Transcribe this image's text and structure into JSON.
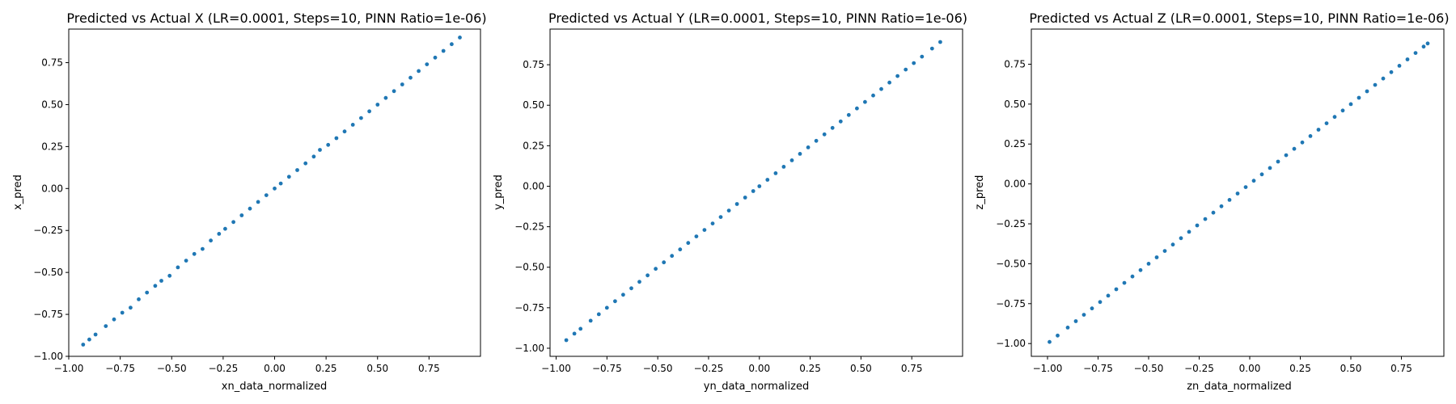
{
  "figure": {
    "point_color": "#1f77b4"
  },
  "chart_data": [
    {
      "type": "scatter",
      "title": "Predicted vs Actual X (LR=0.0001, Steps=10, PINN Ratio=1e-06)",
      "xlabel": "xn_data_normalized",
      "ylabel": "x_pred",
      "xlim": [
        -1.0,
        1.0
      ],
      "ylim": [
        -1.0,
        0.95
      ],
      "xticks": [
        -1.0,
        -0.75,
        -0.5,
        -0.25,
        0.0,
        0.25,
        0.5,
        0.75
      ],
      "xtick_labels": [
        "−1.00",
        "−0.75",
        "−0.50",
        "−0.25",
        "0.00",
        "0.25",
        "0.50",
        "0.75"
      ],
      "yticks": [
        -1.0,
        -0.75,
        -0.5,
        -0.25,
        0.0,
        0.25,
        0.5,
        0.75
      ],
      "ytick_labels": [
        "−1.00",
        "−0.75",
        "−0.50",
        "−0.25",
        "0.00",
        "0.25",
        "0.50",
        "0.75"
      ],
      "grid": false,
      "legend": "none",
      "points": [
        [
          -0.93,
          -0.93
        ],
        [
          -0.9,
          -0.9
        ],
        [
          -0.87,
          -0.87
        ],
        [
          -0.82,
          -0.82
        ],
        [
          -0.78,
          -0.78
        ],
        [
          -0.74,
          -0.74
        ],
        [
          -0.7,
          -0.71
        ],
        [
          -0.66,
          -0.66
        ],
        [
          -0.62,
          -0.62
        ],
        [
          -0.58,
          -0.58
        ],
        [
          -0.55,
          -0.55
        ],
        [
          -0.51,
          -0.52
        ],
        [
          -0.47,
          -0.47
        ],
        [
          -0.43,
          -0.43
        ],
        [
          -0.39,
          -0.39
        ],
        [
          -0.35,
          -0.36
        ],
        [
          -0.31,
          -0.31
        ],
        [
          -0.27,
          -0.27
        ],
        [
          -0.24,
          -0.24
        ],
        [
          -0.2,
          -0.2
        ],
        [
          -0.16,
          -0.16
        ],
        [
          -0.12,
          -0.12
        ],
        [
          -0.08,
          -0.08
        ],
        [
          -0.04,
          -0.04
        ],
        [
          0.0,
          0.0
        ],
        [
          0.03,
          0.03
        ],
        [
          0.07,
          0.07
        ],
        [
          0.11,
          0.11
        ],
        [
          0.15,
          0.15
        ],
        [
          0.19,
          0.19
        ],
        [
          0.22,
          0.23
        ],
        [
          0.26,
          0.26
        ],
        [
          0.3,
          0.3
        ],
        [
          0.34,
          0.34
        ],
        [
          0.38,
          0.38
        ],
        [
          0.42,
          0.42
        ],
        [
          0.46,
          0.46
        ],
        [
          0.5,
          0.5
        ],
        [
          0.54,
          0.54
        ],
        [
          0.58,
          0.58
        ],
        [
          0.62,
          0.62
        ],
        [
          0.66,
          0.66
        ],
        [
          0.7,
          0.7
        ],
        [
          0.74,
          0.74
        ],
        [
          0.78,
          0.78
        ],
        [
          0.82,
          0.82
        ],
        [
          0.86,
          0.86
        ],
        [
          0.9,
          0.9
        ]
      ]
    },
    {
      "type": "scatter",
      "title": "Predicted vs Actual Y (LR=0.0001, Steps=10, PINN Ratio=1e-06)",
      "xlabel": "yn_data_normalized",
      "ylabel": "y_pred",
      "xlim": [
        -1.03,
        1.0
      ],
      "ylim": [
        -1.05,
        0.97
      ],
      "xticks": [
        -1.0,
        -0.75,
        -0.5,
        -0.25,
        0.0,
        0.25,
        0.5,
        0.75
      ],
      "xtick_labels": [
        "−1.00",
        "−0.75",
        "−0.50",
        "−0.25",
        "0.00",
        "0.25",
        "0.50",
        "0.75"
      ],
      "yticks": [
        -1.0,
        -0.75,
        -0.5,
        -0.25,
        0.0,
        0.25,
        0.5,
        0.75
      ],
      "ytick_labels": [
        "−1.00",
        "−0.75",
        "−0.50",
        "−0.25",
        "0.00",
        "0.25",
        "0.50",
        "0.75"
      ],
      "grid": false,
      "legend": "none",
      "points": [
        [
          -0.95,
          -0.95
        ],
        [
          -0.91,
          -0.91
        ],
        [
          -0.88,
          -0.88
        ],
        [
          -0.83,
          -0.83
        ],
        [
          -0.79,
          -0.79
        ],
        [
          -0.75,
          -0.75
        ],
        [
          -0.71,
          -0.71
        ],
        [
          -0.67,
          -0.67
        ],
        [
          -0.63,
          -0.63
        ],
        [
          -0.59,
          -0.59
        ],
        [
          -0.55,
          -0.55
        ],
        [
          -0.51,
          -0.51
        ],
        [
          -0.47,
          -0.47
        ],
        [
          -0.43,
          -0.43
        ],
        [
          -0.39,
          -0.39
        ],
        [
          -0.35,
          -0.35
        ],
        [
          -0.31,
          -0.31
        ],
        [
          -0.27,
          -0.27
        ],
        [
          -0.23,
          -0.23
        ],
        [
          -0.19,
          -0.19
        ],
        [
          -0.15,
          -0.15
        ],
        [
          -0.11,
          -0.11
        ],
        [
          -0.07,
          -0.07
        ],
        [
          -0.03,
          -0.03
        ],
        [
          0.0,
          0.0
        ],
        [
          0.04,
          0.04
        ],
        [
          0.08,
          0.08
        ],
        [
          0.12,
          0.12
        ],
        [
          0.16,
          0.16
        ],
        [
          0.2,
          0.2
        ],
        [
          0.24,
          0.24
        ],
        [
          0.28,
          0.28
        ],
        [
          0.32,
          0.32
        ],
        [
          0.36,
          0.36
        ],
        [
          0.4,
          0.4
        ],
        [
          0.44,
          0.44
        ],
        [
          0.48,
          0.48
        ],
        [
          0.52,
          0.52
        ],
        [
          0.56,
          0.56
        ],
        [
          0.6,
          0.6
        ],
        [
          0.64,
          0.64
        ],
        [
          0.68,
          0.68
        ],
        [
          0.72,
          0.72
        ],
        [
          0.76,
          0.76
        ],
        [
          0.8,
          0.8
        ],
        [
          0.85,
          0.85
        ],
        [
          0.89,
          0.89
        ]
      ]
    },
    {
      "type": "scatter",
      "title": "Predicted vs Actual Z (LR=0.0001, Steps=10, PINN Ratio=1e-06)",
      "xlabel": "zn_data_normalized",
      "ylabel": "z_pred",
      "xlim": [
        -1.08,
        0.96
      ],
      "ylim": [
        -1.08,
        0.97
      ],
      "xticks": [
        -1.0,
        -0.75,
        -0.5,
        -0.25,
        0.0,
        0.25,
        0.5,
        0.75
      ],
      "xtick_labels": [
        "−1.00",
        "−0.75",
        "−0.50",
        "−0.25",
        "0.00",
        "0.25",
        "0.50",
        "0.75"
      ],
      "yticks": [
        -1.0,
        -0.75,
        -0.5,
        -0.25,
        0.0,
        0.25,
        0.5,
        0.75
      ],
      "ytick_labels": [
        "−1.00",
        "−0.75",
        "−0.50",
        "−0.25",
        "0.00",
        "0.25",
        "0.50",
        "0.75"
      ],
      "grid": false,
      "legend": "none",
      "points": [
        [
          -0.99,
          -0.99
        ],
        [
          -0.95,
          -0.95
        ],
        [
          -0.9,
          -0.9
        ],
        [
          -0.86,
          -0.86
        ],
        [
          -0.82,
          -0.82
        ],
        [
          -0.78,
          -0.78
        ],
        [
          -0.74,
          -0.74
        ],
        [
          -0.7,
          -0.7
        ],
        [
          -0.66,
          -0.66
        ],
        [
          -0.62,
          -0.62
        ],
        [
          -0.58,
          -0.58
        ],
        [
          -0.54,
          -0.54
        ],
        [
          -0.5,
          -0.5
        ],
        [
          -0.46,
          -0.46
        ],
        [
          -0.42,
          -0.42
        ],
        [
          -0.38,
          -0.38
        ],
        [
          -0.34,
          -0.34
        ],
        [
          -0.3,
          -0.3
        ],
        [
          -0.26,
          -0.26
        ],
        [
          -0.22,
          -0.22
        ],
        [
          -0.18,
          -0.18
        ],
        [
          -0.14,
          -0.14
        ],
        [
          -0.1,
          -0.1
        ],
        [
          -0.06,
          -0.06
        ],
        [
          -0.02,
          -0.02
        ],
        [
          0.02,
          0.02
        ],
        [
          0.06,
          0.06
        ],
        [
          0.1,
          0.1
        ],
        [
          0.14,
          0.14
        ],
        [
          0.18,
          0.18
        ],
        [
          0.22,
          0.22
        ],
        [
          0.26,
          0.26
        ],
        [
          0.3,
          0.3
        ],
        [
          0.34,
          0.34
        ],
        [
          0.38,
          0.38
        ],
        [
          0.42,
          0.42
        ],
        [
          0.46,
          0.46
        ],
        [
          0.5,
          0.5
        ],
        [
          0.54,
          0.54
        ],
        [
          0.58,
          0.58
        ],
        [
          0.62,
          0.62
        ],
        [
          0.66,
          0.66
        ],
        [
          0.7,
          0.7
        ],
        [
          0.74,
          0.74
        ],
        [
          0.78,
          0.78
        ],
        [
          0.82,
          0.82
        ],
        [
          0.86,
          0.86
        ],
        [
          0.88,
          0.88
        ]
      ]
    }
  ]
}
